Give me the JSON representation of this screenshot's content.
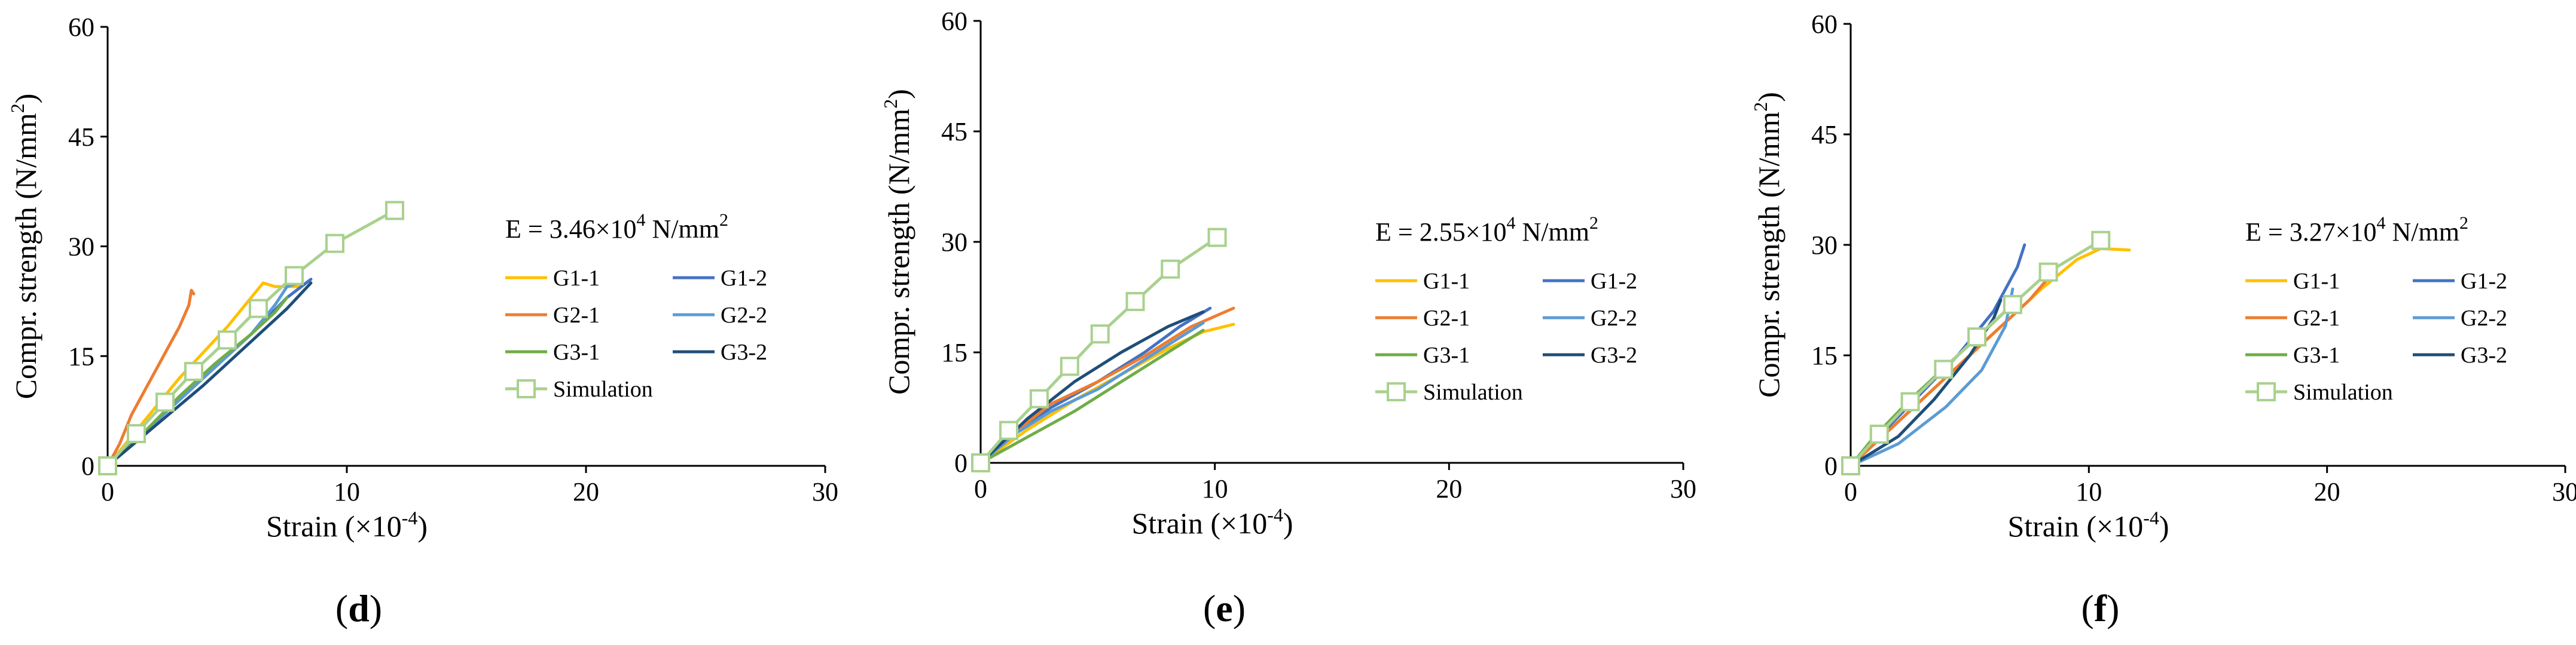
{
  "chart_data": [
    {
      "type": "line",
      "panel_label": "d",
      "xlabel": "Strain (×10",
      "xlabel_sup": "-4",
      "xlabel_end": ")",
      "ylabel": "Compr. strength (N/mm",
      "ylabel_sup": "2",
      "ylabel_end": ")",
      "xlim": [
        0,
        30
      ],
      "ylim": [
        0,
        60
      ],
      "xticks": [
        0,
        10,
        20,
        30
      ],
      "yticks": [
        0,
        15,
        30,
        45,
        60
      ],
      "modulus_prefix": "E = 3.46×10",
      "modulus_exp": "4",
      "modulus_unit": " N/mm",
      "modulus_unit_sup": "2",
      "series": [
        {
          "name": "G1-1",
          "color": "#FFC000",
          "points": [
            [
              0,
              0
            ],
            [
              1,
              4
            ],
            [
              2,
              8
            ],
            [
              3,
              12
            ],
            [
              4,
              15.5
            ],
            [
              5,
              19
            ],
            [
              6,
              23
            ],
            [
              6.5,
              25
            ],
            [
              7,
              24.5
            ],
            [
              8,
              24.5
            ]
          ]
        },
        {
          "name": "G1-2",
          "color": "#4472C4",
          "points": [
            [
              0,
              0
            ],
            [
              2,
              6
            ],
            [
              4,
              12
            ],
            [
              6,
              18
            ],
            [
              7.5,
              23
            ],
            [
              8.5,
              25.5
            ]
          ]
        },
        {
          "name": "G2-1",
          "color": "#ED7D31",
          "points": [
            [
              0,
              0
            ],
            [
              0.5,
              3
            ],
            [
              1,
              7
            ],
            [
              1.5,
              10
            ],
            [
              2,
              13
            ],
            [
              2.5,
              16
            ],
            [
              3,
              19
            ],
            [
              3.4,
              22
            ],
            [
              3.5,
              24
            ],
            [
              3.6,
              23.5
            ]
          ]
        },
        {
          "name": "G2-2",
          "color": "#5B9BD5",
          "points": [
            [
              0,
              0
            ],
            [
              2,
              6
            ],
            [
              4,
              12
            ],
            [
              6,
              18
            ],
            [
              7,
              22
            ],
            [
              7.5,
              24.5
            ],
            [
              8,
              25
            ]
          ]
        },
        {
          "name": "G3-1",
          "color": "#70AD47",
          "points": [
            [
              0,
              0
            ],
            [
              1.5,
              4.5
            ],
            [
              3,
              9.5
            ],
            [
              4.5,
              14
            ],
            [
              6,
              18
            ],
            [
              7,
              21
            ],
            [
              7.5,
              23
            ]
          ]
        },
        {
          "name": "G3-2",
          "color": "#1F4E79",
          "points": [
            [
              0,
              0
            ],
            [
              2,
              5.5
            ],
            [
              4,
              11
            ],
            [
              6,
              17
            ],
            [
              7.5,
              21.5
            ],
            [
              8.5,
              25
            ]
          ]
        }
      ],
      "simulation": {
        "name": "Simulation",
        "color": "#A9D18E",
        "points": [
          [
            0,
            0
          ],
          [
            1.2,
            4.4
          ],
          [
            2.4,
            8.7
          ],
          [
            3.6,
            12.9
          ],
          [
            5.0,
            17.2
          ],
          [
            6.3,
            21.5
          ],
          [
            7.8,
            26.0
          ],
          [
            9.5,
            30.4
          ],
          [
            12.0,
            34.9
          ]
        ]
      }
    },
    {
      "type": "line",
      "panel_label": "e",
      "xlabel": "Strain (×10",
      "xlabel_sup": "-4",
      "xlabel_end": ")",
      "ylabel": "Compr. strength (N/mm",
      "ylabel_sup": "2",
      "ylabel_end": ")",
      "xlim": [
        0,
        30
      ],
      "ylim": [
        0,
        60
      ],
      "xticks": [
        0,
        10,
        20,
        30
      ],
      "yticks": [
        0,
        15,
        30,
        45,
        60
      ],
      "modulus_prefix": "E = 2.55×10",
      "modulus_exp": "4",
      "modulus_unit": " N/mm",
      "modulus_unit_sup": "2",
      "series": [
        {
          "name": "G1-1",
          "color": "#FFC000",
          "points": [
            [
              0,
              0
            ],
            [
              2,
              4.5
            ],
            [
              4,
              8.5
            ],
            [
              6,
              12
            ],
            [
              8,
              15.5
            ],
            [
              9.5,
              17.8
            ],
            [
              10.8,
              18.8
            ]
          ]
        },
        {
          "name": "G1-2",
          "color": "#4472C4",
          "points": [
            [
              0,
              0
            ],
            [
              1.5,
              4
            ],
            [
              3,
              7.5
            ],
            [
              5,
              11
            ],
            [
              7,
              15
            ],
            [
              8.5,
              18.5
            ],
            [
              9.8,
              21
            ]
          ]
        },
        {
          "name": "G2-1",
          "color": "#ED7D31",
          "points": [
            [
              0,
              0
            ],
            [
              1,
              3
            ],
            [
              3,
              8
            ],
            [
              5,
              11
            ],
            [
              7,
              14.5
            ],
            [
              9,
              18.5
            ],
            [
              10.8,
              21
            ]
          ]
        },
        {
          "name": "G2-2",
          "color": "#5B9BD5",
          "points": [
            [
              0,
              0
            ],
            [
              1.5,
              4
            ],
            [
              3,
              7
            ],
            [
              5,
              10
            ],
            [
              7,
              14
            ],
            [
              8.5,
              17
            ],
            [
              9.5,
              19
            ]
          ]
        },
        {
          "name": "G3-1",
          "color": "#70AD47",
          "points": [
            [
              0,
              0
            ],
            [
              2,
              3.5
            ],
            [
              4,
              7
            ],
            [
              6,
              11
            ],
            [
              8,
              15
            ],
            [
              9.5,
              18
            ]
          ]
        },
        {
          "name": "G3-2",
          "color": "#1F4E79",
          "points": [
            [
              0,
              0
            ],
            [
              1,
              3
            ],
            [
              2,
              6
            ],
            [
              4,
              11
            ],
            [
              6,
              15
            ],
            [
              8,
              18.5
            ],
            [
              9.5,
              20.5
            ]
          ]
        }
      ],
      "simulation": {
        "name": "Simulation",
        "color": "#A9D18E",
        "points": [
          [
            0,
            0
          ],
          [
            1.2,
            4.4
          ],
          [
            2.5,
            8.7
          ],
          [
            3.8,
            13.1
          ],
          [
            5.1,
            17.5
          ],
          [
            6.6,
            21.9
          ],
          [
            8.1,
            26.3
          ],
          [
            10.1,
            30.6
          ]
        ]
      }
    },
    {
      "type": "line",
      "panel_label": "f",
      "xlabel": "Strain (×10",
      "xlabel_sup": "-4",
      "xlabel_end": ")",
      "ylabel": "Compr. strength (N/mm",
      "ylabel_sup": "2",
      "ylabel_end": ")",
      "xlim": [
        0,
        30
      ],
      "ylim": [
        0,
        60
      ],
      "xticks": [
        0,
        10,
        20,
        30
      ],
      "yticks": [
        0,
        15,
        30,
        45,
        60
      ],
      "modulus_prefix": "E = 3.27×10",
      "modulus_exp": "4",
      "modulus_unit": " N/mm",
      "modulus_unit_sup": "2",
      "series": [
        {
          "name": "G1-1",
          "color": "#FFC000",
          "points": [
            [
              0,
              0
            ],
            [
              2,
              6
            ],
            [
              4,
              12
            ],
            [
              6,
              18
            ],
            [
              8,
              24
            ],
            [
              9.5,
              28
            ],
            [
              10.5,
              29.5
            ],
            [
              11.7,
              29.3
            ]
          ]
        },
        {
          "name": "G1-2",
          "color": "#4472C4",
          "points": [
            [
              0,
              0
            ],
            [
              1.5,
              5
            ],
            [
              3,
              10
            ],
            [
              4.5,
              15
            ],
            [
              6,
              21
            ],
            [
              7,
              27
            ],
            [
              7.3,
              30
            ]
          ]
        },
        {
          "name": "G2-1",
          "color": "#ED7D31",
          "points": [
            [
              0,
              0
            ],
            [
              2,
              6
            ],
            [
              4,
              12
            ],
            [
              6,
              18
            ],
            [
              7.5,
              22.5
            ],
            [
              8.3,
              25.5
            ]
          ]
        },
        {
          "name": "G2-2",
          "color": "#5B9BD5",
          "points": [
            [
              0,
              0
            ],
            [
              2,
              3
            ],
            [
              4,
              8
            ],
            [
              5.5,
              13
            ],
            [
              6.5,
              19
            ],
            [
              6.8,
              24
            ]
          ]
        },
        {
          "name": "G3-1",
          "color": "#70AD47",
          "points": [
            [
              0,
              0
            ],
            [
              1,
              4
            ],
            [
              2.5,
              9
            ],
            [
              4,
              13.5
            ],
            [
              5.5,
              18
            ],
            [
              6.5,
              21
            ]
          ]
        },
        {
          "name": "G3-2",
          "color": "#1F4E79",
          "points": [
            [
              0,
              0
            ],
            [
              2,
              4
            ],
            [
              3.5,
              9
            ],
            [
              5,
              15
            ],
            [
              6,
              20
            ],
            [
              6.3,
              22.5
            ]
          ]
        }
      ],
      "simulation": {
        "name": "Simulation",
        "color": "#A9D18E",
        "points": [
          [
            0,
            0
          ],
          [
            1.2,
            4.3
          ],
          [
            2.5,
            8.7
          ],
          [
            3.9,
            13.1
          ],
          [
            5.3,
            17.5
          ],
          [
            6.8,
            21.9
          ],
          [
            8.3,
            26.3
          ],
          [
            10.5,
            30.6
          ]
        ]
      }
    }
  ]
}
